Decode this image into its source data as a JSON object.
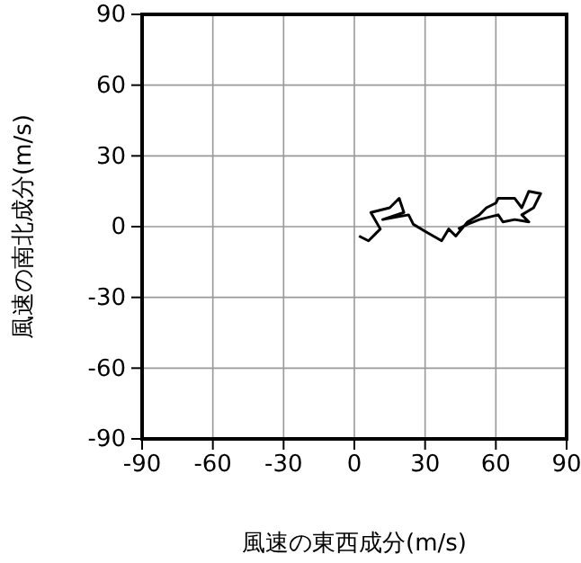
{
  "chart_data": {
    "type": "line",
    "xlabel": "風速の東西成分(m/s)",
    "ylabel": "風速の南北成分(m/s)",
    "xlim": [
      -90,
      90
    ],
    "ylim": [
      -90,
      90
    ],
    "xticks": [
      -90,
      -60,
      -30,
      0,
      30,
      60,
      90
    ],
    "yticks": [
      -90,
      -60,
      -30,
      0,
      30,
      60,
      90
    ],
    "grid": true,
    "marker": "none",
    "line_style": "solid",
    "series": [
      {
        "color": "#000000",
        "x": [
          2,
          6,
          9,
          11,
          7,
          15,
          19,
          21,
          12,
          23,
          25,
          30,
          37,
          40,
          43,
          48,
          53,
          56,
          60,
          61,
          68,
          71,
          74,
          79,
          76,
          71,
          74,
          68,
          63,
          61,
          53,
          48,
          44
        ],
        "values": [
          -4,
          -6,
          -3,
          -1,
          6,
          8,
          12,
          6,
          3,
          5,
          1,
          -2,
          -6,
          -1,
          -4,
          2,
          5,
          8,
          10,
          12,
          12,
          8,
          15,
          14,
          8,
          5,
          2,
          3,
          2,
          5,
          3,
          1,
          -1
        ]
      }
    ]
  }
}
